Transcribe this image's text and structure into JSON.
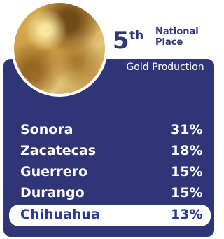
{
  "header": {
    "rank": "5",
    "rank_suffix": "th",
    "rank_label": "National Place",
    "subtitle": "Gold Production"
  },
  "table": {
    "rows": [
      [
        "Sonora",
        "31%"
      ],
      [
        "Zacatecas",
        "18%"
      ],
      [
        "Guerrero",
        "15%"
      ],
      [
        "Durango",
        "15%"
      ],
      [
        "Chihuahua",
        "13%"
      ]
    ]
  }
}
